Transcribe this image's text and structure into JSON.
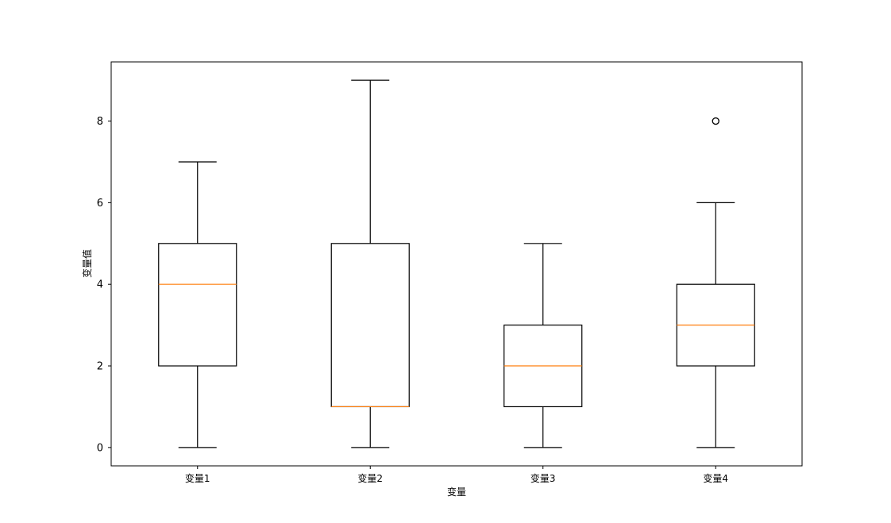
{
  "chart_data": {
    "type": "boxplot",
    "title": "",
    "xlabel": "变量",
    "ylabel": "变量值",
    "categories": [
      "变量1",
      "变量2",
      "变量3",
      "变量4"
    ],
    "boxes": [
      {
        "name": "变量1",
        "whisker_low": 0,
        "q1": 2,
        "median": 4,
        "q3": 5,
        "whisker_high": 7,
        "outliers": []
      },
      {
        "name": "变量2",
        "whisker_low": 0,
        "q1": 1,
        "median": 1,
        "q3": 5,
        "whisker_high": 9,
        "outliers": []
      },
      {
        "name": "变量3",
        "whisker_low": 0,
        "q1": 1,
        "median": 2,
        "q3": 3,
        "whisker_high": 5,
        "outliers": []
      },
      {
        "name": "变量4",
        "whisker_low": 0,
        "q1": 2,
        "median": 3,
        "q3": 4,
        "whisker_high": 6,
        "outliers": [
          8
        ]
      }
    ],
    "yticks": [
      0,
      2,
      4,
      6,
      8
    ],
    "ylim": [
      -0.45,
      9.45
    ],
    "grid": false,
    "colors": {
      "box": "#000000",
      "median": "#ff7f0e",
      "outlier": "#000000"
    }
  }
}
